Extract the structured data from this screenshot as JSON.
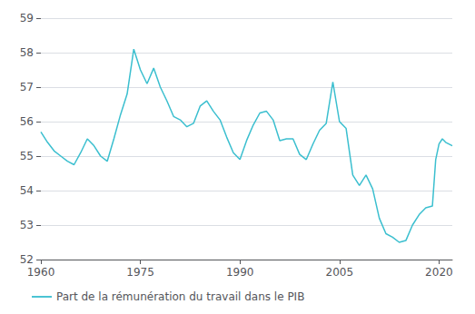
{
  "chart_data": {
    "type": "line",
    "x": [
      1960,
      1961,
      1962,
      1963,
      1964,
      1965,
      1966,
      1967,
      1968,
      1969,
      1970,
      1971,
      1972,
      1973,
      1974,
      1975,
      1976,
      1977,
      1978,
      1979,
      1980,
      1981,
      1982,
      1983,
      1984,
      1985,
      1986,
      1987,
      1988,
      1989,
      1990,
      1991,
      1992,
      1993,
      1994,
      1995,
      1996,
      1997,
      1998,
      1999,
      2000,
      2001,
      2002,
      2003,
      2004,
      2005,
      2006,
      2007,
      2008,
      2009,
      2010,
      2011,
      2012,
      2013,
      2014,
      2015,
      2016,
      2017,
      2018,
      2019,
      2019.5,
      2020,
      2020.5,
      2021,
      2022
    ],
    "series": [
      {
        "name": "Part de la rémunération du travail dans le PIB",
        "color": "#3BBFCF",
        "values": [
          55.7,
          55.4,
          55.15,
          55.0,
          54.85,
          54.75,
          55.1,
          55.5,
          55.3,
          55.0,
          54.85,
          55.5,
          56.2,
          56.8,
          58.1,
          57.5,
          57.1,
          57.55,
          57.0,
          56.6,
          56.15,
          56.05,
          55.85,
          55.95,
          56.45,
          56.6,
          56.3,
          56.05,
          55.55,
          55.1,
          54.9,
          55.45,
          55.9,
          56.25,
          56.3,
          56.05,
          55.45,
          55.5,
          55.5,
          55.05,
          54.9,
          55.35,
          55.75,
          55.95,
          57.15,
          56.0,
          55.8,
          54.45,
          54.15,
          54.45,
          54.05,
          53.2,
          52.75,
          52.65,
          52.5,
          52.55,
          53.0,
          53.3,
          53.5,
          53.55,
          54.9,
          55.35,
          55.5,
          55.4,
          55.3
        ]
      }
    ],
    "xlim": [
      1960,
      2022
    ],
    "ylim": [
      52,
      59
    ],
    "xticks": [
      1960,
      1975,
      1990,
      2005,
      2020
    ],
    "yticks": [
      52,
      53,
      54,
      55,
      56,
      57,
      58,
      59
    ],
    "grid": true,
    "legend": "bottom"
  }
}
